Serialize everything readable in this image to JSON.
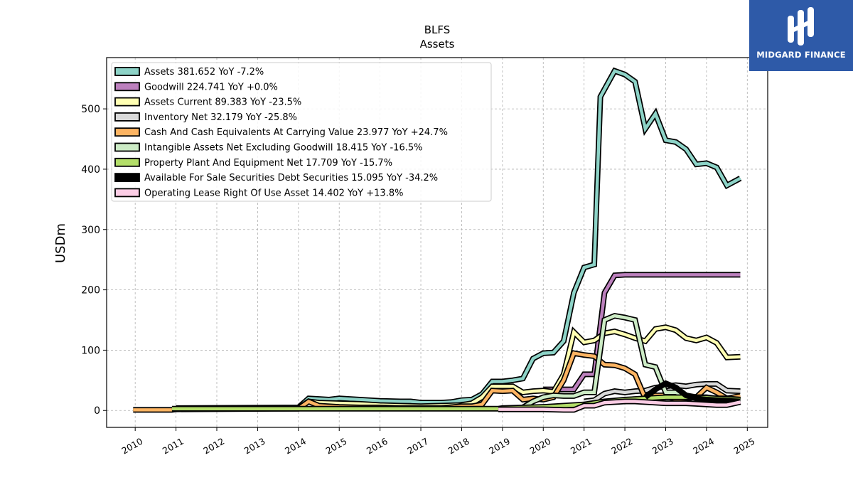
{
  "brand": {
    "name": "MIDGARD FINANCE",
    "bg": "#2e5aa8"
  },
  "chart_data": {
    "type": "line",
    "title": "BLFS",
    "subtitle": "Assets",
    "ylabel": "USDm",
    "xlabel": "",
    "xlim": [
      2009.3,
      2025.5
    ],
    "ylim": [
      -28,
      585
    ],
    "x_ticks": [
      "2010",
      "2011",
      "2012",
      "2013",
      "2014",
      "2015",
      "2016",
      "2017",
      "2018",
      "2019",
      "2020",
      "2021",
      "2022",
      "2023",
      "2024",
      "2025"
    ],
    "y_ticks": [
      0,
      100,
      200,
      300,
      400,
      500
    ],
    "grid": true,
    "legend_position": "top-left",
    "series": [
      {
        "name": "Assets  381.652 YoY -7.2%",
        "color": "#8dd3c7",
        "points": [
          [
            2011.0,
            4
          ],
          [
            2014.0,
            5
          ],
          [
            2014.25,
            20
          ],
          [
            2014.5,
            19
          ],
          [
            2014.75,
            18
          ],
          [
            2015.0,
            20
          ],
          [
            2015.5,
            18
          ],
          [
            2016.0,
            16
          ],
          [
            2016.5,
            15
          ],
          [
            2016.75,
            15
          ],
          [
            2017.0,
            13
          ],
          [
            2017.5,
            13
          ],
          [
            2017.75,
            14
          ],
          [
            2018.0,
            17
          ],
          [
            2018.25,
            18
          ],
          [
            2018.5,
            27
          ],
          [
            2018.75,
            48
          ],
          [
            2019.0,
            48
          ],
          [
            2019.25,
            50
          ],
          [
            2019.5,
            53
          ],
          [
            2019.75,
            86
          ],
          [
            2020.0,
            95
          ],
          [
            2020.25,
            96
          ],
          [
            2020.5,
            115
          ],
          [
            2020.75,
            195
          ],
          [
            2021.0,
            237
          ],
          [
            2021.25,
            242
          ],
          [
            2021.4,
            520
          ],
          [
            2021.75,
            563
          ],
          [
            2022.0,
            557
          ],
          [
            2022.25,
            545
          ],
          [
            2022.5,
            467
          ],
          [
            2022.75,
            492
          ],
          [
            2023.0,
            448
          ],
          [
            2023.25,
            445
          ],
          [
            2023.5,
            433
          ],
          [
            2023.75,
            408
          ],
          [
            2024.0,
            410
          ],
          [
            2024.25,
            403
          ],
          [
            2024.5,
            373
          ],
          [
            2024.83,
            385
          ]
        ]
      },
      {
        "name": "Goodwill  224.741 YoY +0.0%",
        "color": "#bc80bd",
        "points": [
          [
            2020.0,
            35
          ],
          [
            2020.5,
            35
          ],
          [
            2020.75,
            35
          ],
          [
            2021.0,
            60
          ],
          [
            2021.25,
            60
          ],
          [
            2021.5,
            195
          ],
          [
            2021.75,
            224
          ],
          [
            2022.0,
            225
          ],
          [
            2024.83,
            225
          ]
        ]
      },
      {
        "name": "Assets Current  89.383 YoY -23.5%",
        "color": "#ffffb3",
        "points": [
          [
            2014.0,
            4
          ],
          [
            2014.25,
            15
          ],
          [
            2014.5,
            13
          ],
          [
            2015.0,
            12
          ],
          [
            2015.5,
            11
          ],
          [
            2016.0,
            9
          ],
          [
            2016.5,
            8
          ],
          [
            2017.0,
            7
          ],
          [
            2017.5,
            8
          ],
          [
            2018.0,
            9
          ],
          [
            2018.25,
            12
          ],
          [
            2018.5,
            22
          ],
          [
            2018.75,
            40
          ],
          [
            2019.0,
            40
          ],
          [
            2019.25,
            40
          ],
          [
            2019.5,
            30
          ],
          [
            2019.75,
            32
          ],
          [
            2020.0,
            33
          ],
          [
            2020.25,
            31
          ],
          [
            2020.5,
            60
          ],
          [
            2020.75,
            130
          ],
          [
            2021.0,
            113
          ],
          [
            2021.25,
            116
          ],
          [
            2021.5,
            128
          ],
          [
            2021.75,
            131
          ],
          [
            2022.0,
            126
          ],
          [
            2022.25,
            120
          ],
          [
            2022.5,
            115
          ],
          [
            2022.75,
            135
          ],
          [
            2023.0,
            138
          ],
          [
            2023.25,
            133
          ],
          [
            2023.5,
            120
          ],
          [
            2023.75,
            116
          ],
          [
            2024.0,
            121
          ],
          [
            2024.25,
            112
          ],
          [
            2024.5,
            88
          ],
          [
            2024.83,
            89
          ]
        ]
      },
      {
        "name": "Inventory Net  32.179 YoY -25.8%",
        "color": "#d9d9d9",
        "points": [
          [
            2021.0,
            15
          ],
          [
            2021.25,
            17
          ],
          [
            2021.5,
            28
          ],
          [
            2021.75,
            32
          ],
          [
            2022.0,
            30
          ],
          [
            2022.25,
            32
          ],
          [
            2022.5,
            33
          ],
          [
            2022.75,
            38
          ],
          [
            2023.0,
            40
          ],
          [
            2023.25,
            42
          ],
          [
            2023.5,
            40
          ],
          [
            2023.75,
            43
          ],
          [
            2024.0,
            44
          ],
          [
            2024.25,
            44
          ],
          [
            2024.5,
            33
          ],
          [
            2024.83,
            32
          ]
        ]
      },
      {
        "name": "Cash And Cash Equivalents At Carrying Value  23.977 YoY +24.7%",
        "color": "#fdb462",
        "points": [
          [
            2009.95,
            1
          ],
          [
            2010.9,
            1
          ],
          [
            2011.0,
            2
          ],
          [
            2014.0,
            3
          ],
          [
            2014.25,
            15
          ],
          [
            2014.5,
            8
          ],
          [
            2015.0,
            6
          ],
          [
            2015.5,
            5
          ],
          [
            2016.0,
            5
          ],
          [
            2016.5,
            4
          ],
          [
            2017.0,
            4
          ],
          [
            2017.5,
            4
          ],
          [
            2018.0,
            7
          ],
          [
            2018.25,
            7
          ],
          [
            2018.5,
            10
          ],
          [
            2018.75,
            33
          ],
          [
            2019.0,
            32
          ],
          [
            2019.25,
            33
          ],
          [
            2019.5,
            18
          ],
          [
            2019.75,
            20
          ],
          [
            2020.0,
            18
          ],
          [
            2020.25,
            22
          ],
          [
            2020.5,
            50
          ],
          [
            2020.75,
            95
          ],
          [
            2021.0,
            92
          ],
          [
            2021.25,
            90
          ],
          [
            2021.5,
            76
          ],
          [
            2021.75,
            75
          ],
          [
            2022.0,
            70
          ],
          [
            2022.25,
            60
          ],
          [
            2022.5,
            20
          ],
          [
            2022.75,
            25
          ],
          [
            2023.0,
            25
          ],
          [
            2023.25,
            18
          ],
          [
            2023.5,
            20
          ],
          [
            2023.75,
            22
          ],
          [
            2024.0,
            38
          ],
          [
            2024.25,
            30
          ],
          [
            2024.5,
            20
          ],
          [
            2024.83,
            24
          ]
        ]
      },
      {
        "name": "Intangible Assets Net Excluding Goodwill  18.415 YoY -16.5%",
        "color": "#ccebc5",
        "points": [
          [
            2019.5,
            5
          ],
          [
            2019.75,
            15
          ],
          [
            2020.0,
            22
          ],
          [
            2020.25,
            25
          ],
          [
            2020.5,
            24
          ],
          [
            2020.75,
            24
          ],
          [
            2021.0,
            30
          ],
          [
            2021.25,
            30
          ],
          [
            2021.5,
            150
          ],
          [
            2021.75,
            157
          ],
          [
            2022.0,
            154
          ],
          [
            2022.25,
            150
          ],
          [
            2022.5,
            76
          ],
          [
            2022.75,
            72
          ],
          [
            2023.0,
            30
          ],
          [
            2023.25,
            30
          ],
          [
            2023.5,
            25
          ],
          [
            2023.75,
            22
          ],
          [
            2024.0,
            22
          ],
          [
            2024.25,
            20
          ],
          [
            2024.5,
            20
          ],
          [
            2024.83,
            18
          ]
        ]
      },
      {
        "name": "Property Plant And Equipment Net  17.709 YoY -15.7%",
        "color": "#b3de69",
        "points": [
          [
            2010.9,
            3
          ],
          [
            2012.0,
            3
          ],
          [
            2014.0,
            3
          ],
          [
            2016.0,
            3
          ],
          [
            2018.0,
            3
          ],
          [
            2018.9,
            3
          ],
          [
            2019.0,
            4
          ],
          [
            2020.0,
            6
          ],
          [
            2021.0,
            10
          ],
          [
            2021.5,
            15
          ],
          [
            2022.0,
            18
          ],
          [
            2022.5,
            20
          ],
          [
            2023.0,
            22
          ],
          [
            2023.5,
            22
          ],
          [
            2024.0,
            21
          ],
          [
            2024.5,
            19
          ],
          [
            2024.83,
            18
          ]
        ]
      },
      {
        "name": "Available For Sale Securities Debt Securities  15.095 YoY -34.2%",
        "color": "#000000",
        "points": [
          [
            2022.5,
            22
          ],
          [
            2022.75,
            35
          ],
          [
            2023.0,
            45
          ],
          [
            2023.25,
            38
          ],
          [
            2023.5,
            25
          ],
          [
            2023.75,
            20
          ],
          [
            2024.0,
            18
          ],
          [
            2024.25,
            17
          ],
          [
            2024.5,
            16
          ],
          [
            2024.83,
            15
          ]
        ]
      },
      {
        "name": "Operating Lease Right Of Use Asset  14.402 YoY +13.8%",
        "color": "#fccde5",
        "points": [
          [
            2018.9,
            2
          ],
          [
            2019.5,
            2
          ],
          [
            2020.0,
            2
          ],
          [
            2020.5,
            1
          ],
          [
            2020.75,
            1
          ],
          [
            2021.0,
            8
          ],
          [
            2021.25,
            8
          ],
          [
            2021.5,
            13
          ],
          [
            2021.75,
            14
          ],
          [
            2022.0,
            15
          ],
          [
            2022.25,
            15
          ],
          [
            2022.5,
            14
          ],
          [
            2022.75,
            13
          ],
          [
            2023.0,
            12
          ],
          [
            2023.25,
            12
          ],
          [
            2023.5,
            12
          ],
          [
            2023.75,
            11
          ],
          [
            2024.0,
            10
          ],
          [
            2024.25,
            9
          ],
          [
            2024.5,
            9
          ],
          [
            2024.83,
            14
          ]
        ]
      }
    ]
  }
}
